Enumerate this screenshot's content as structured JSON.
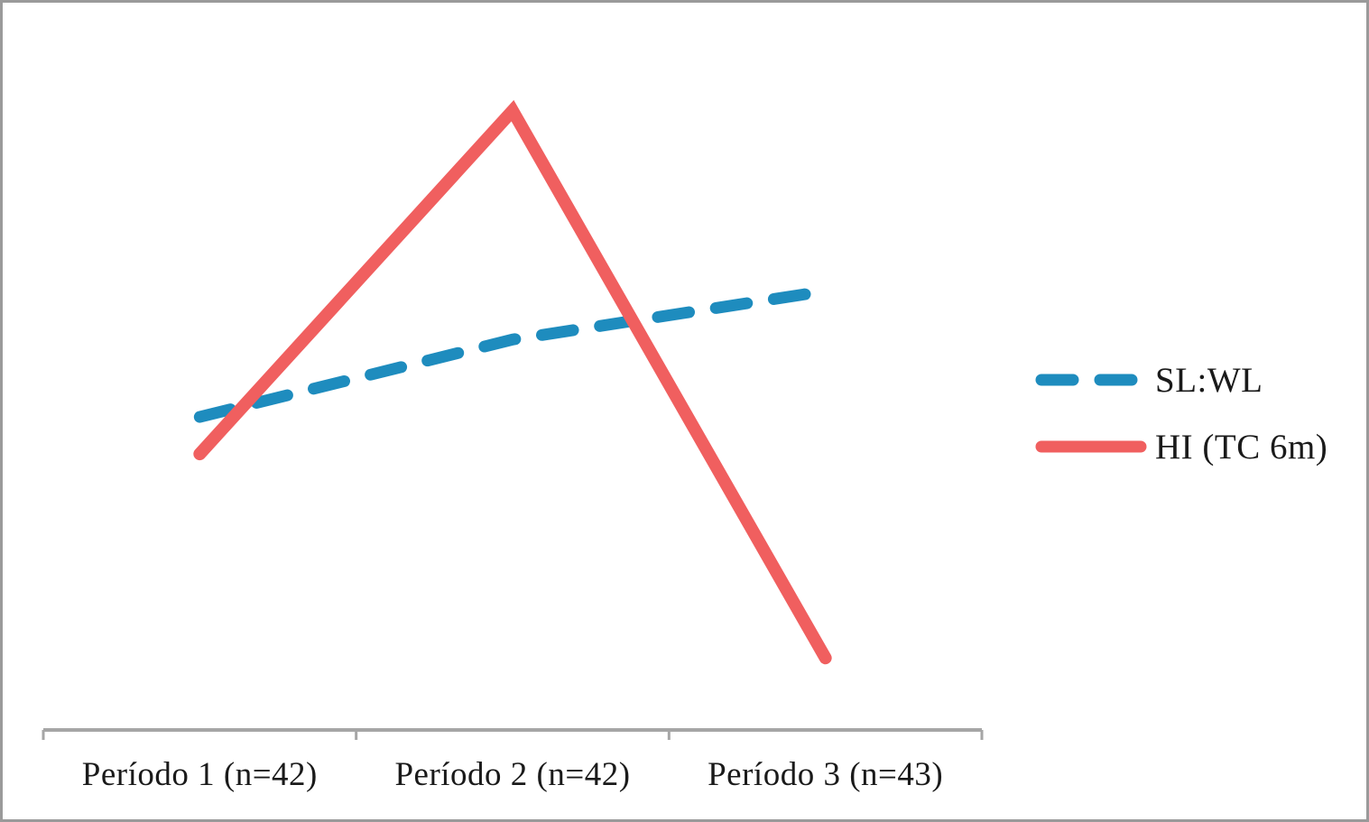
{
  "chart_data": {
    "type": "line",
    "title": "",
    "xlabel": "",
    "ylabel": "",
    "categories": [
      "Período 1 (n=42)",
      "Período 2 (n=42)",
      "Período 3 (n=43)"
    ],
    "series": [
      {
        "name": "SL:WL",
        "style": "dashed",
        "color": "#1E8CBE",
        "values": [
          0.465,
          0.58,
          0.652
        ]
      },
      {
        "name": "HI (TC 6m)",
        "style": "solid",
        "color": "#F05F5F",
        "values": [
          0.41,
          0.92,
          0.107
        ]
      }
    ],
    "ylim": [
      0,
      1
    ],
    "y_axis": "hidden",
    "grid": "off",
    "legend_position": "middle-right"
  },
  "colors": {
    "axis": "#a6a6a6",
    "frame_border": "#9a9a9a",
    "text": "#1a1a1a",
    "background": "#ffffff"
  }
}
